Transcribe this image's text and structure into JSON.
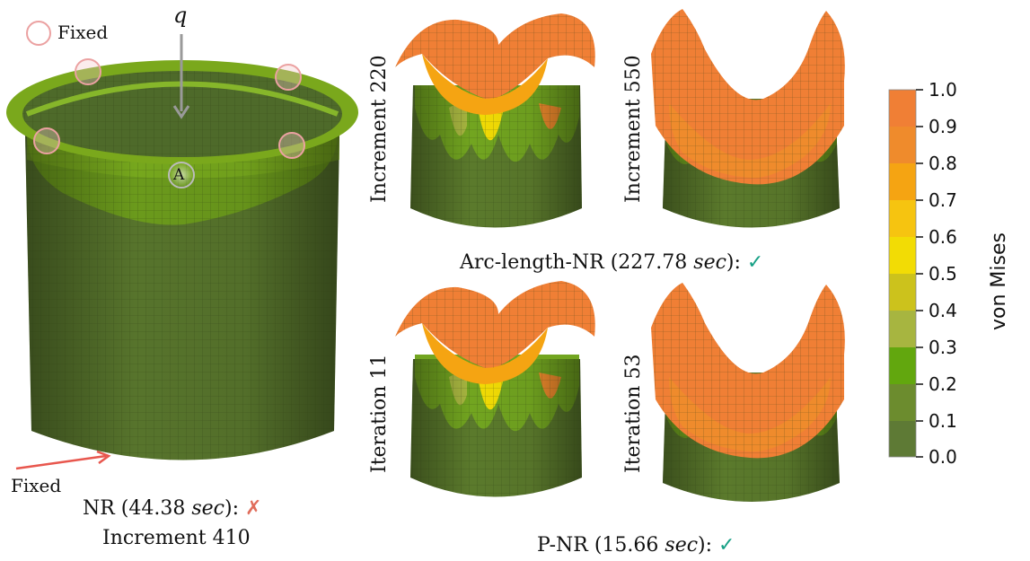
{
  "colors": {
    "band_0_0_1": "#5e7a35",
    "band_0_1_0_2": "#6c8c2e",
    "band_0_2_0_3": "#62a70e",
    "band_0_3_0_4": "#a7b540",
    "band_0_4_0_5": "#ccc21c",
    "band_0_5_0_6": "#f2dc05",
    "band_0_6_0_7": "#f6c410",
    "band_0_7_0_8": "#f5a412",
    "band_0_8_0_9": "#ef8b2c",
    "band_0_9_1_0": "#f07f35",
    "check": "#16a085",
    "cross": "#e06d5b",
    "arrow_red": "#e8574e",
    "arrow_gray": "#9a9a9a"
  },
  "left_panel": {
    "fixed_top_label": "Fixed",
    "fixed_bottom_label": "Fixed",
    "load_label": "q",
    "point_label": "A",
    "caption_method": "NR (44.38 ",
    "caption_unit": "sec",
    "caption_tail": "):",
    "caption_mark": "✗",
    "caption_line2": "Increment 410"
  },
  "middle": {
    "top_left_label": "Increment 220",
    "top_right_label": "Increment 550",
    "top_caption_method": "Arc-length-NR (227.78 ",
    "top_caption_unit": "sec",
    "top_caption_tail": "):",
    "top_caption_mark": "✓",
    "bottom_left_label": "Iteration 11",
    "bottom_right_label": "Iteration 53",
    "bottom_caption_method": "P-NR (15.66 ",
    "bottom_caption_unit": "sec",
    "bottom_caption_tail": "):",
    "bottom_caption_mark": "✓"
  },
  "colorbar": {
    "title": "von Mises",
    "ticks": [
      "1.0",
      "0.9",
      "0.8",
      "0.7",
      "0.6",
      "0.5",
      "0.4",
      "0.3",
      "0.2",
      "0.1",
      "0.0"
    ]
  }
}
